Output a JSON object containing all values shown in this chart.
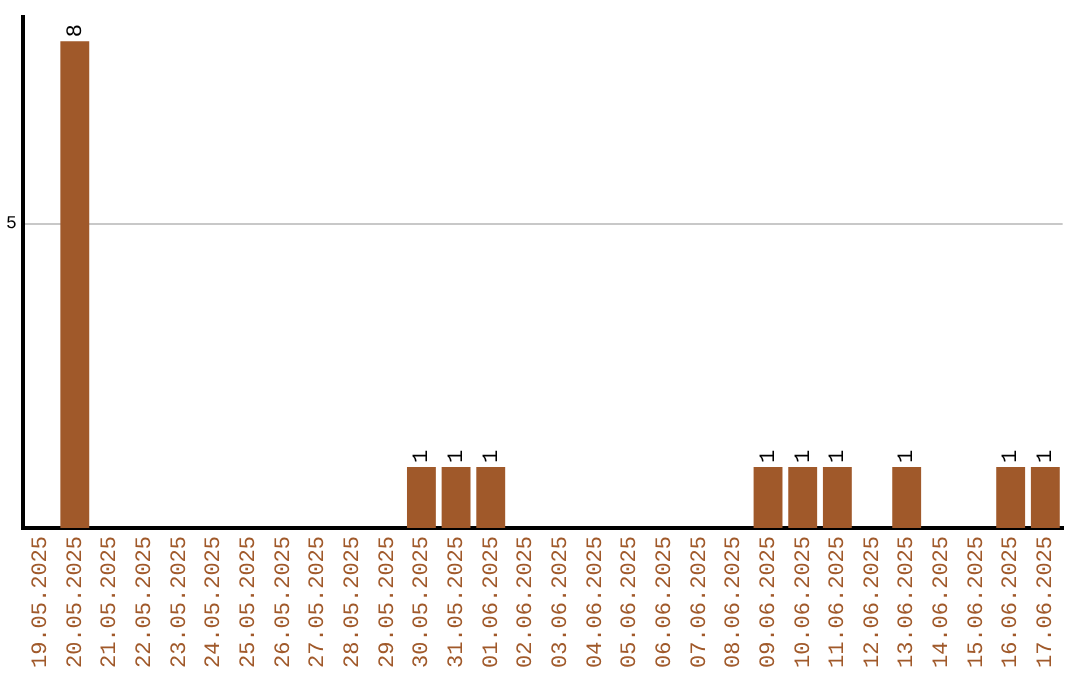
{
  "chart_data": {
    "type": "bar",
    "categories": [
      "19.05.2025",
      "20.05.2025",
      "21.05.2025",
      "22.05.2025",
      "23.05.2025",
      "24.05.2025",
      "25.05.2025",
      "26.05.2025",
      "27.05.2025",
      "28.05.2025",
      "29.05.2025",
      "30.05.2025",
      "31.05.2025",
      "01.06.2025",
      "02.06.2025",
      "03.06.2025",
      "04.06.2025",
      "05.06.2025",
      "06.06.2025",
      "07.06.2025",
      "08.06.2025",
      "09.06.2025",
      "10.06.2025",
      "11.06.2025",
      "12.06.2025",
      "13.06.2025",
      "14.06.2025",
      "15.06.2025",
      "16.06.2025",
      "17.06.2025"
    ],
    "values": [
      0,
      8,
      0,
      0,
      0,
      0,
      0,
      0,
      0,
      0,
      0,
      1,
      1,
      1,
      0,
      0,
      0,
      0,
      0,
      0,
      0,
      1,
      1,
      1,
      0,
      1,
      0,
      0,
      1,
      1
    ],
    "value_labels": [
      null,
      "8",
      null,
      null,
      null,
      null,
      null,
      null,
      null,
      null,
      null,
      "1",
      "1",
      "1",
      null,
      null,
      null,
      null,
      null,
      null,
      null,
      "1",
      "1",
      "1",
      null,
      "1",
      null,
      null,
      "1",
      "1"
    ],
    "color": "#a0592a",
    "ylim": [
      0,
      8.4
    ],
    "yticks": [
      5
    ],
    "grid": "y",
    "legend": false
  }
}
